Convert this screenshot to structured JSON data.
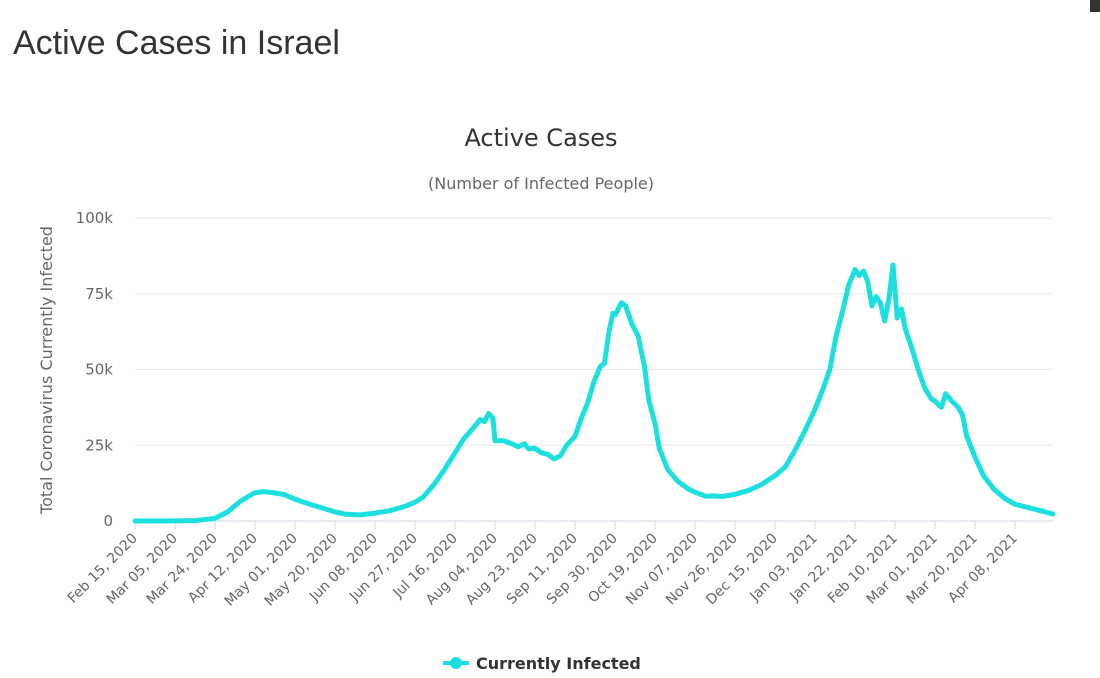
{
  "page": {
    "heading": "Active Cases in Israel"
  },
  "chart_data": {
    "type": "line",
    "title": "Active Cases",
    "subtitle": "(Number of Infected People)",
    "ylabel": "Total Coronavirus Currently Infected",
    "xlabel": "",
    "ylim": [
      0,
      100000
    ],
    "yticks": [
      {
        "value": 0,
        "label": "0"
      },
      {
        "value": 25000,
        "label": "25k"
      },
      {
        "value": 50000,
        "label": "50k"
      },
      {
        "value": 75000,
        "label": "75k"
      },
      {
        "value": 100000,
        "label": "100k"
      }
    ],
    "x_start": "2020-02-15",
    "x_end": "2021-04-26",
    "xticks": [
      {
        "date": "2020-02-15",
        "label": "Feb 15, 2020"
      },
      {
        "date": "2020-03-05",
        "label": "Mar 05, 2020"
      },
      {
        "date": "2020-03-24",
        "label": "Mar 24, 2020"
      },
      {
        "date": "2020-04-12",
        "label": "Apr 12, 2020"
      },
      {
        "date": "2020-05-01",
        "label": "May 01, 2020"
      },
      {
        "date": "2020-05-20",
        "label": "May 20, 2020"
      },
      {
        "date": "2020-06-08",
        "label": "Jun 08, 2020"
      },
      {
        "date": "2020-06-27",
        "label": "Jun 27, 2020"
      },
      {
        "date": "2020-07-16",
        "label": "Jul 16, 2020"
      },
      {
        "date": "2020-08-04",
        "label": "Aug 04, 2020"
      },
      {
        "date": "2020-08-23",
        "label": "Aug 23, 2020"
      },
      {
        "date": "2020-09-11",
        "label": "Sep 11, 2020"
      },
      {
        "date": "2020-09-30",
        "label": "Sep 30, 2020"
      },
      {
        "date": "2020-10-19",
        "label": "Oct 19, 2020"
      },
      {
        "date": "2020-11-07",
        "label": "Nov 07, 2020"
      },
      {
        "date": "2020-11-26",
        "label": "Nov 26, 2020"
      },
      {
        "date": "2020-12-15",
        "label": "Dec 15, 2020"
      },
      {
        "date": "2021-01-03",
        "label": "Jan 03, 2021"
      },
      {
        "date": "2021-01-22",
        "label": "Jan 22, 2021"
      },
      {
        "date": "2021-02-10",
        "label": "Feb 10, 2021"
      },
      {
        "date": "2021-03-01",
        "label": "Mar 01, 2021"
      },
      {
        "date": "2021-03-20",
        "label": "Mar 20, 2021"
      },
      {
        "date": "2021-04-08",
        "label": "Apr 08, 2021"
      }
    ],
    "legend_position": "bottom-center",
    "grid": true,
    "series": [
      {
        "name": "Currently Infected",
        "color": "#1ddfdf",
        "points": [
          [
            "2020-02-15",
            0
          ],
          [
            "2020-03-05",
            20
          ],
          [
            "2020-03-15",
            150
          ],
          [
            "2020-03-24",
            900
          ],
          [
            "2020-03-30",
            3000
          ],
          [
            "2020-04-05",
            6500
          ],
          [
            "2020-04-09",
            8200
          ],
          [
            "2020-04-12",
            9300
          ],
          [
            "2020-04-16",
            9700
          ],
          [
            "2020-04-20",
            9400
          ],
          [
            "2020-04-26",
            8700
          ],
          [
            "2020-05-01",
            7200
          ],
          [
            "2020-05-08",
            5500
          ],
          [
            "2020-05-15",
            4100
          ],
          [
            "2020-05-20",
            3000
          ],
          [
            "2020-05-25",
            2200
          ],
          [
            "2020-06-01",
            2000
          ],
          [
            "2020-06-08",
            2600
          ],
          [
            "2020-06-15",
            3400
          ],
          [
            "2020-06-22",
            4800
          ],
          [
            "2020-06-27",
            6200
          ],
          [
            "2020-07-01",
            8000
          ],
          [
            "2020-07-06",
            12000
          ],
          [
            "2020-07-11",
            17000
          ],
          [
            "2020-07-16",
            22500
          ],
          [
            "2020-07-20",
            27000
          ],
          [
            "2020-07-25",
            31000
          ],
          [
            "2020-07-28",
            33500
          ],
          [
            "2020-07-30",
            32800
          ],
          [
            "2020-08-01",
            35500
          ],
          [
            "2020-08-03",
            34000
          ],
          [
            "2020-08-04",
            26500
          ],
          [
            "2020-08-08",
            26500
          ],
          [
            "2020-08-12",
            25500
          ],
          [
            "2020-08-15",
            24500
          ],
          [
            "2020-08-18",
            25500
          ],
          [
            "2020-08-20",
            23800
          ],
          [
            "2020-08-23",
            24000
          ],
          [
            "2020-08-26",
            22500
          ],
          [
            "2020-08-29",
            22000
          ],
          [
            "2020-09-01",
            20500
          ],
          [
            "2020-09-04",
            21500
          ],
          [
            "2020-09-07",
            25000
          ],
          [
            "2020-09-11",
            28000
          ],
          [
            "2020-09-14",
            34000
          ],
          [
            "2020-09-17",
            39000
          ],
          [
            "2020-09-20",
            46000
          ],
          [
            "2020-09-23",
            51000
          ],
          [
            "2020-09-25",
            52000
          ],
          [
            "2020-09-27",
            62000
          ],
          [
            "2020-09-29",
            68500
          ],
          [
            "2020-09-30",
            68000
          ],
          [
            "2020-10-03",
            72000
          ],
          [
            "2020-10-05",
            71000
          ],
          [
            "2020-10-08",
            65000
          ],
          [
            "2020-10-11",
            61000
          ],
          [
            "2020-10-14",
            51000
          ],
          [
            "2020-10-16",
            40000
          ],
          [
            "2020-10-19",
            32000
          ],
          [
            "2020-10-21",
            24000
          ],
          [
            "2020-10-25",
            17000
          ],
          [
            "2020-10-30",
            13000
          ],
          [
            "2020-11-04",
            10500
          ],
          [
            "2020-11-07",
            9500
          ],
          [
            "2020-11-12",
            8200
          ],
          [
            "2020-11-16",
            8300
          ],
          [
            "2020-11-20",
            8100
          ],
          [
            "2020-11-26",
            8800
          ],
          [
            "2020-12-02",
            10000
          ],
          [
            "2020-12-08",
            11800
          ],
          [
            "2020-12-15",
            15000
          ],
          [
            "2020-12-20",
            18000
          ],
          [
            "2020-12-25",
            24000
          ],
          [
            "2020-12-30",
            31000
          ],
          [
            "2021-01-03",
            37000
          ],
          [
            "2021-01-07",
            44000
          ],
          [
            "2021-01-10",
            50000
          ],
          [
            "2021-01-13",
            61000
          ],
          [
            "2021-01-16",
            69000
          ],
          [
            "2021-01-19",
            78000
          ],
          [
            "2021-01-22",
            83000
          ],
          [
            "2021-01-24",
            81000
          ],
          [
            "2021-01-26",
            82500
          ],
          [
            "2021-01-28",
            79000
          ],
          [
            "2021-01-30",
            71000
          ],
          [
            "2021-02-01",
            74000
          ],
          [
            "2021-02-03",
            72000
          ],
          [
            "2021-02-05",
            66000
          ],
          [
            "2021-02-07",
            73000
          ],
          [
            "2021-02-09",
            84500
          ],
          [
            "2021-02-11",
            67000
          ],
          [
            "2021-02-13",
            70000
          ],
          [
            "2021-02-15",
            63000
          ],
          [
            "2021-02-18",
            57000
          ],
          [
            "2021-02-21",
            50000
          ],
          [
            "2021-02-24",
            44000
          ],
          [
            "2021-02-27",
            40500
          ],
          [
            "2021-03-01",
            39500
          ],
          [
            "2021-03-04",
            37500
          ],
          [
            "2021-03-06",
            42000
          ],
          [
            "2021-03-09",
            39500
          ],
          [
            "2021-03-12",
            37500
          ],
          [
            "2021-03-14",
            35000
          ],
          [
            "2021-03-16",
            28000
          ],
          [
            "2021-03-20",
            21000
          ],
          [
            "2021-03-24",
            15000
          ],
          [
            "2021-03-29",
            10500
          ],
          [
            "2021-04-03",
            7500
          ],
          [
            "2021-04-08",
            5500
          ],
          [
            "2021-04-14",
            4500
          ],
          [
            "2021-04-20",
            3400
          ],
          [
            "2021-04-26",
            2300
          ]
        ]
      }
    ]
  }
}
